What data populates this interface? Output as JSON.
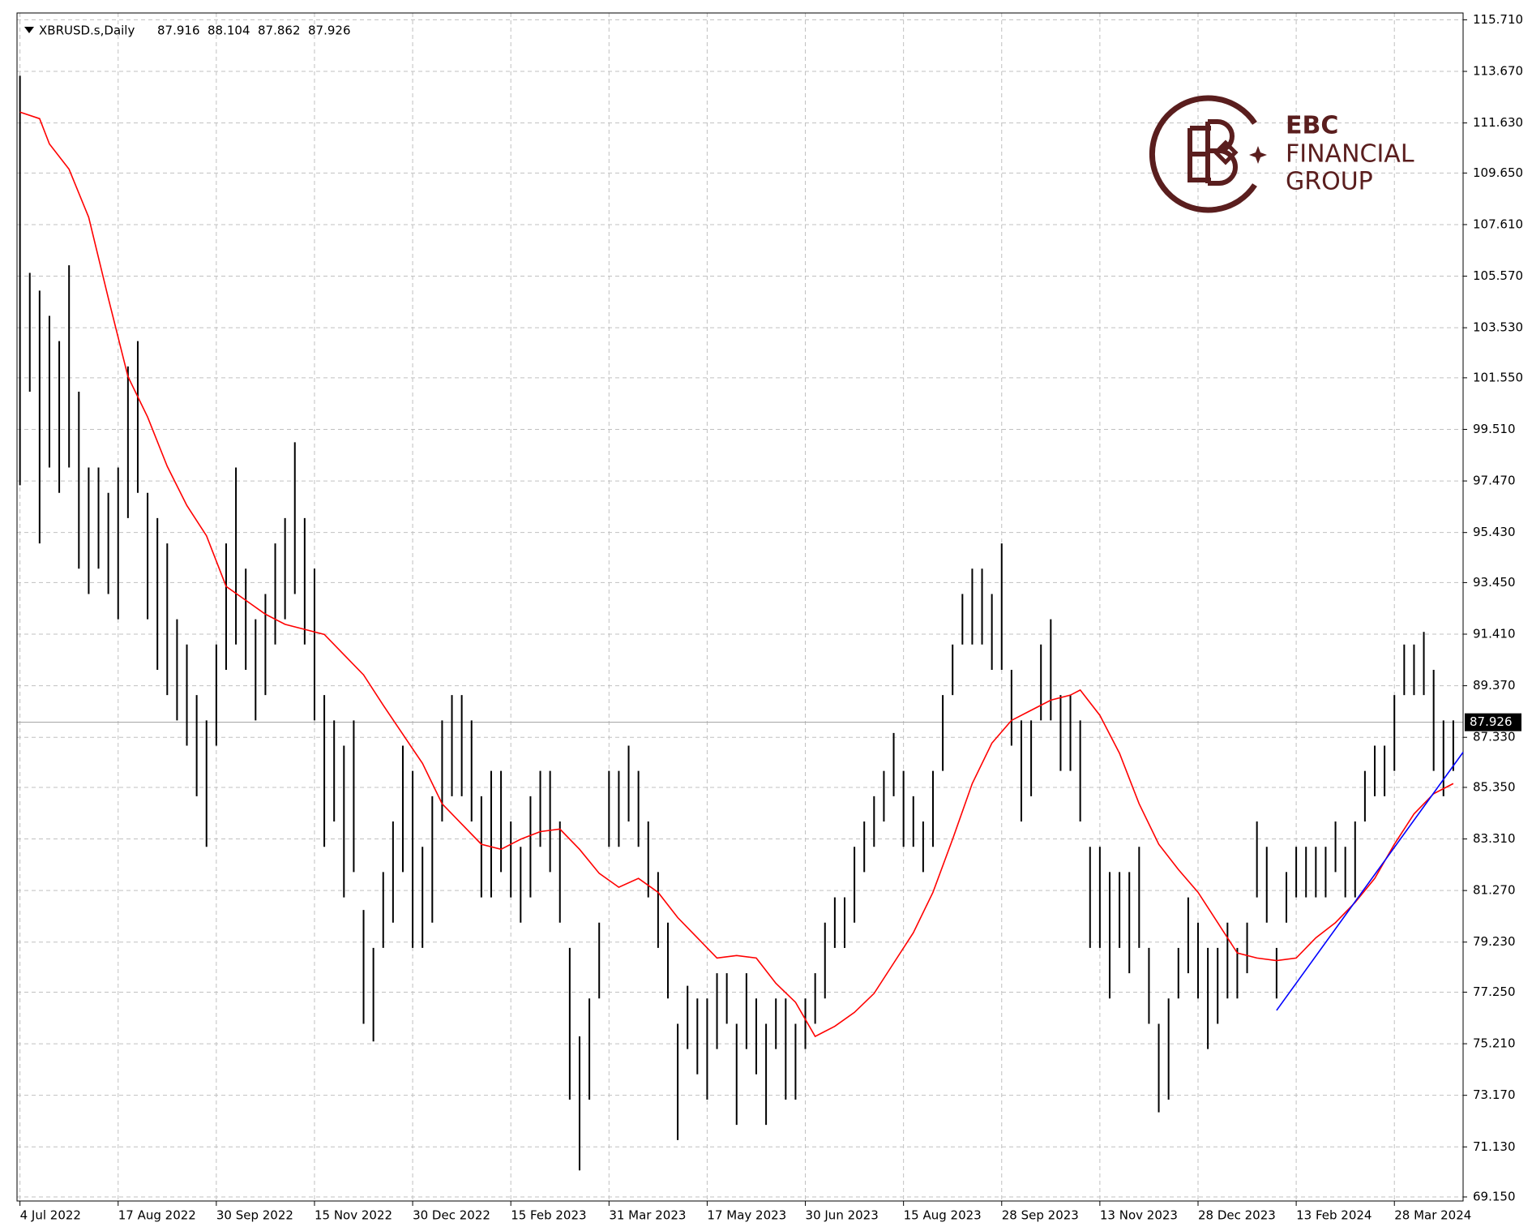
{
  "chart_data": {
    "type": "ohlc",
    "symbol": "XBRUSD.s,Daily",
    "ohlc": [
      87.916,
      88.104,
      87.862,
      87.926
    ],
    "color": "#000000",
    "grid": true,
    "bars": {
      "low": [
        97.3,
        101,
        95,
        98,
        97,
        98,
        94,
        93,
        94,
        93,
        92,
        96,
        97,
        92,
        90,
        89,
        88,
        87,
        85,
        83,
        87,
        90,
        91,
        90,
        88,
        89,
        91,
        92,
        93,
        91,
        88,
        83,
        84,
        81,
        82,
        76,
        75.3,
        79,
        80,
        82,
        79,
        79,
        80,
        84,
        85,
        85,
        84,
        81,
        81,
        82,
        81,
        80,
        81,
        83,
        82,
        80,
        73,
        70.2,
        73,
        77,
        83,
        83,
        84,
        83,
        81,
        79,
        77,
        71.4,
        75,
        74,
        73,
        75,
        76,
        72,
        75,
        74,
        72,
        75,
        73,
        73,
        75,
        76,
        77,
        79,
        79,
        80,
        82,
        83,
        84,
        85,
        83,
        83,
        82,
        83,
        86,
        89,
        91,
        91,
        91,
        90,
        90,
        87,
        84,
        85,
        88,
        88,
        86,
        86,
        84,
        79,
        79,
        77,
        79,
        78,
        79,
        76,
        72.5,
        73,
        77,
        78,
        77,
        75,
        76,
        77,
        77,
        78,
        81,
        80,
        77,
        80,
        81,
        81,
        81,
        81,
        82,
        81,
        81,
        84,
        85,
        85,
        86,
        89,
        89,
        89,
        86,
        85,
        86
      ],
      "high": [
        113.5,
        105.7,
        105,
        104,
        103,
        106,
        101,
        98,
        98,
        97,
        98,
        102,
        103,
        97,
        96,
        95,
        92,
        91,
        89,
        88,
        91,
        95,
        98,
        94,
        92,
        93,
        95,
        96,
        99,
        96,
        94,
        89,
        88,
        87,
        88,
        80.5,
        79,
        82,
        84,
        87,
        86,
        83,
        85,
        88,
        89,
        89,
        88,
        85,
        86,
        86,
        84,
        83,
        85,
        86,
        86,
        84,
        79,
        75.5,
        77,
        80,
        86,
        86,
        87,
        86,
        84,
        82,
        80,
        76,
        77.5,
        77,
        77,
        78,
        78,
        76,
        78,
        77,
        76,
        77,
        77,
        76,
        77,
        78,
        80,
        81,
        81,
        83,
        84,
        85,
        86,
        87.5,
        86,
        85,
        84,
        86,
        89,
        91,
        93,
        94,
        94,
        93,
        95,
        90,
        88,
        88,
        91,
        92,
        89,
        89,
        88,
        83,
        83,
        82,
        82,
        82,
        83,
        79,
        76,
        77,
        79,
        81,
        80,
        79,
        79,
        80,
        79,
        80,
        84,
        83,
        79,
        82,
        83,
        83,
        83,
        83,
        84,
        83,
        84,
        86,
        87,
        87,
        89,
        91,
        91,
        91.5,
        90,
        88,
        88
      ]
    },
    "moving_average": {
      "color": "#ff0000",
      "x": [
        0,
        2,
        3,
        5,
        7,
        9,
        11,
        13,
        15,
        17,
        19,
        21,
        23,
        25,
        27,
        29,
        31,
        33,
        35,
        37,
        39,
        41,
        43,
        45,
        47,
        49,
        51,
        53,
        55,
        57,
        59,
        61,
        63,
        65,
        67,
        69,
        71,
        73,
        75,
        77,
        79,
        81,
        83,
        85,
        87,
        89,
        91,
        93,
        95,
        97,
        99,
        101,
        103,
        105,
        107,
        108,
        110,
        112,
        114,
        116,
        118,
        120,
        122,
        124,
        126,
        128,
        130,
        132,
        134,
        136,
        138,
        140,
        142,
        144,
        146
      ],
      "values": [
        112.06,
        111.8,
        110.8,
        109.8,
        107.9,
        104.7,
        101.6,
        100,
        98.05,
        96.5,
        95.3,
        93.3,
        92.75,
        92.2,
        91.8,
        91.6,
        91.4,
        90.6,
        89.8,
        88.6,
        87.45,
        86.3,
        84.7,
        83.9,
        83.1,
        82.9,
        83.3,
        83.6,
        83.7,
        82.9,
        81.95,
        81.4,
        81.75,
        81.2,
        80.2,
        79.4,
        78.6,
        78.7,
        78.6,
        77.6,
        76.85,
        75.5,
        75.9,
        76.45,
        77.2,
        78.4,
        79.6,
        81.2,
        83.3,
        85.5,
        87.1,
        88,
        88.4,
        88.8,
        89,
        89.2,
        88.2,
        86.7,
        84.7,
        83.1,
        82.1,
        81.2,
        80,
        78.8,
        78.6,
        78.5,
        78.6,
        79.4,
        80,
        80.8,
        81.75,
        83.1,
        84.3,
        85.1,
        85.5
      ]
    },
    "trendline": {
      "color": "#0000ff",
      "x": [
        128,
        147
      ],
      "values": [
        76.53,
        86.74
      ]
    },
    "xlim": [
      -0.3,
      147
    ],
    "xticks": [
      {
        "value": 0,
        "label": "4 Jul 2022"
      },
      {
        "value": 10,
        "label": "17 Aug 2022"
      },
      {
        "value": 20,
        "label": "30 Sep 2022"
      },
      {
        "value": 30,
        "label": "15 Nov 2022"
      },
      {
        "value": 40,
        "label": "30 Dec 2022"
      },
      {
        "value": 50,
        "label": "15 Feb 2023"
      },
      {
        "value": 60,
        "label": "31 Mar 2023"
      },
      {
        "value": 70,
        "label": "17 May 2023"
      },
      {
        "value": 80,
        "label": "30 Jun 2023"
      },
      {
        "value": 90,
        "label": "15 Aug 2023"
      },
      {
        "value": 100,
        "label": "28 Sep 2023"
      },
      {
        "value": 110,
        "label": "13 Nov 2023"
      },
      {
        "value": 120,
        "label": "28 Dec 2023"
      },
      {
        "value": 130,
        "label": "13 Feb 2024"
      },
      {
        "value": 140,
        "label": "28 Mar 2024"
      }
    ],
    "ylim": [
      68.99,
      115.98
    ],
    "yticks": [
      {
        "value": 115.71,
        "label": "115.710"
      },
      {
        "value": 113.67,
        "label": "113.670"
      },
      {
        "value": 111.63,
        "label": "111.630"
      },
      {
        "value": 109.65,
        "label": "109.650"
      },
      {
        "value": 107.61,
        "label": "107.610"
      },
      {
        "value": 105.57,
        "label": "105.570"
      },
      {
        "value": 103.53,
        "label": "103.530"
      },
      {
        "value": 101.55,
        "label": "101.550"
      },
      {
        "value": 99.51,
        "label": "99.510"
      },
      {
        "value": 97.47,
        "label": "97.470"
      },
      {
        "value": 95.43,
        "label": "95.430"
      },
      {
        "value": 93.45,
        "label": "93.450"
      },
      {
        "value": 91.41,
        "label": "91.410"
      },
      {
        "value": 89.37,
        "label": "89.370"
      },
      {
        "value": 87.33,
        "label": "87.330"
      },
      {
        "value": 85.35,
        "label": "85.350"
      },
      {
        "value": 83.31,
        "label": "83.310"
      },
      {
        "value": 81.27,
        "label": "81.270"
      },
      {
        "value": 79.23,
        "label": "79.230"
      },
      {
        "value": 77.25,
        "label": "77.250"
      },
      {
        "value": 75.21,
        "label": "75.210"
      },
      {
        "value": 73.17,
        "label": "73.170"
      },
      {
        "value": 71.13,
        "label": "71.130"
      },
      {
        "value": 69.15,
        "label": "69.150"
      }
    ]
  },
  "logo": {
    "line1": "EBC",
    "line2": "FINANCIAL",
    "line3": "GROUP"
  }
}
